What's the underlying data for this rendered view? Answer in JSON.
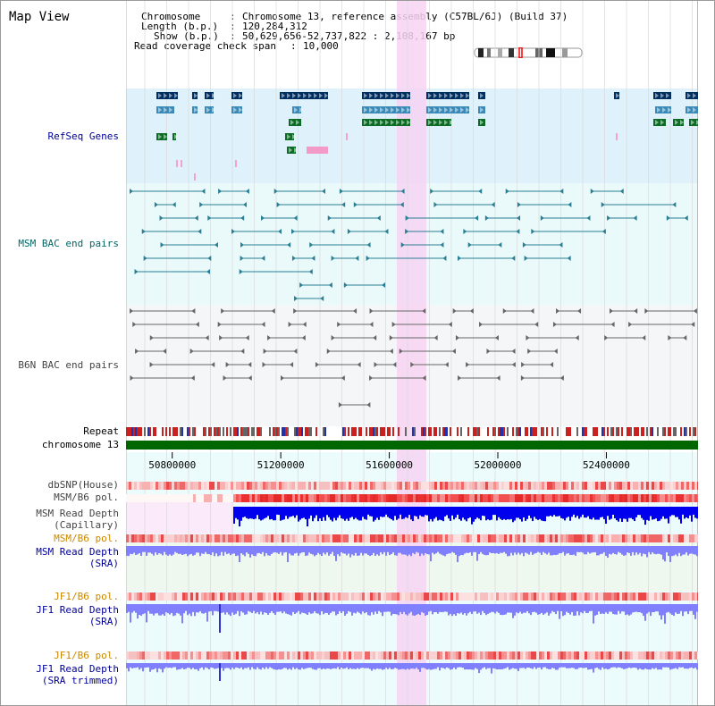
{
  "title": "Map View",
  "info": {
    "chromosome_key": "Chromosome",
    "chromosome_val": "Chromosome 13, reference assembly (C57BL/6J) (Build 37)",
    "length_key": "Length (b.p.)",
    "length_val": "120,284,312",
    "show_key": "Show (b.p.)",
    "show_val": "50,629,656-52,737,822 : 2,108,167 bp",
    "coverage_key": "Read coverage check span",
    "coverage_val": "10,000"
  },
  "tracks": {
    "refseq": "RefSeq Genes",
    "msm_bac": "MSM BAC end pairs",
    "b6n_bac": "B6N BAC end pairs",
    "repeat": "Repeat",
    "chrom": "chromosome 13",
    "dbsnp": "dbSNP(House)",
    "msm_pol1": "MSM/B6 pol.",
    "msm_depth_cap_1": "MSM Read Depth",
    "msm_depth_cap_2": "(Capillary)",
    "msm_pol2": "MSM/B6 pol.",
    "msm_depth_sra_1": "MSM Read Depth",
    "msm_depth_sra_2": "(SRA)",
    "jf1_pol1": "JF1/B6 pol.",
    "jf1_depth_sra_1": "JF1 Read Depth",
    "jf1_depth_sra_2": "(SRA)",
    "jf1_pol2": "JF1/B6 pol.",
    "jf1_depth_trim_1": "JF1 Read Depth",
    "jf1_depth_trim_2": "(SRA trimmed)"
  },
  "axis": {
    "start": 50629656,
    "end": 52737822,
    "ticks": [
      "50800000",
      "51200000",
      "51600000",
      "52000000",
      "52400000"
    ]
  },
  "colors": {
    "refseq_bg": "#dff2fb",
    "msm_bg": "#eafafa",
    "b6n_bg": "#f4f6f8",
    "highlight": "#f7d3f3",
    "chrom_bar": "#006600",
    "depth_blue": "#0000ee",
    "depth_light": "#8080ff",
    "label_blue": "#000099",
    "label_teal": "#006666",
    "label_orange": "#cc8800",
    "label_gray": "#444444"
  }
}
